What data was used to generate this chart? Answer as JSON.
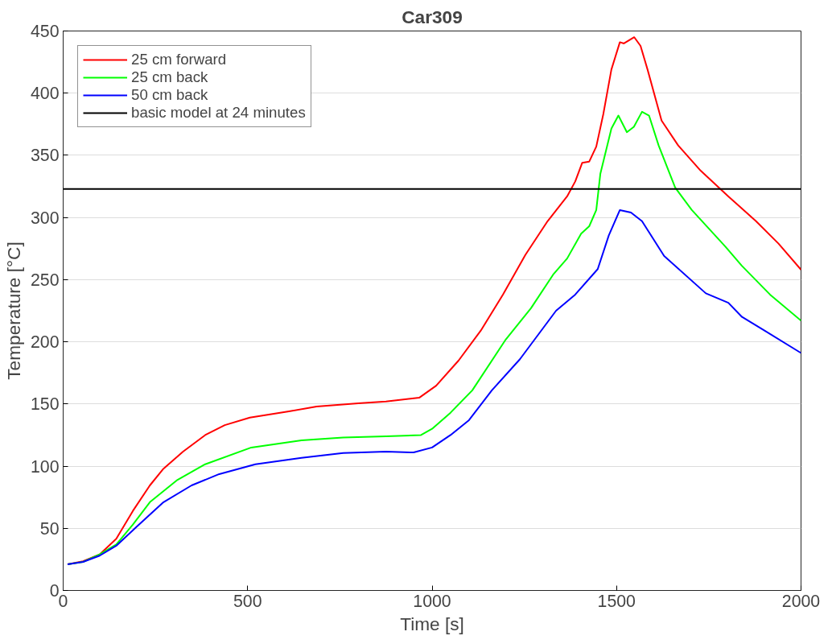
{
  "chart_data": {
    "type": "line",
    "title": "Car309",
    "xlabel": "Time [s]",
    "ylabel": "Temperature [°C]",
    "xlim": [
      0,
      2000
    ],
    "xticks": [
      0,
      500,
      1000,
      1500,
      2000
    ],
    "ylim": [
      0,
      450
    ],
    "yticks": [
      0,
      50,
      100,
      150,
      200,
      250,
      300,
      350,
      400,
      450
    ],
    "grid": "y",
    "legend": "top left",
    "line_style": "solid",
    "marker": "none",
    "series": [
      {
        "name": "25 cm forward",
        "color": "#ff0000",
        "x": [
          12,
          54,
          99,
          144,
          189,
          235,
          272,
          325,
          385,
          438,
          506,
          612,
          687,
          800,
          875,
          965,
          1011,
          1072,
          1132,
          1192,
          1253,
          1313,
          1366,
          1388,
          1407,
          1426,
          1445,
          1464,
          1486,
          1509,
          1520,
          1548,
          1565,
          1584,
          1622,
          1667,
          1728,
          1803,
          1878,
          1939,
          2000
        ],
        "values": [
          21,
          23.5,
          29,
          41.6,
          64,
          84.5,
          98,
          111.7,
          125,
          133,
          139,
          144,
          148,
          150.5,
          152,
          155,
          164.7,
          185,
          209,
          238,
          270,
          297,
          317,
          329,
          344,
          345,
          357,
          383,
          419,
          441,
          440,
          445,
          438,
          419,
          378,
          358,
          337.6,
          317,
          297,
          279,
          258
        ]
      },
      {
        "name": "25 cm back",
        "color": "#00ff00",
        "x": [
          12,
          54,
          99,
          144,
          189,
          235,
          310,
          385,
          510,
          646,
          759,
          875,
          970,
          1000,
          1050,
          1109,
          1200,
          1268,
          1328,
          1366,
          1404,
          1426,
          1445,
          1456,
          1486,
          1505,
          1528,
          1547,
          1569,
          1588,
          1614,
          1659,
          1704,
          1795,
          1840,
          1916,
          2000
        ],
        "values": [
          21,
          23,
          29,
          37,
          53,
          71,
          89,
          101.5,
          115,
          120.7,
          123,
          124,
          125,
          130,
          143,
          161,
          202,
          227,
          254,
          267,
          287,
          293,
          306,
          335,
          371.5,
          382,
          368.6,
          373,
          385,
          382,
          358,
          324,
          306,
          276.6,
          261,
          238,
          217
        ]
      },
      {
        "name": "50 cm back",
        "color": "#0000ff",
        "x": [
          12,
          54,
          99,
          144,
          197,
          272,
          348,
          423,
          521,
          646,
          759,
          875,
          950,
          1000,
          1050,
          1100,
          1162,
          1238,
          1336,
          1388,
          1449,
          1479,
          1509,
          1539,
          1569,
          1629,
          1742,
          1803,
          1840,
          1901,
          2000
        ],
        "values": [
          21,
          23,
          28,
          36,
          50.6,
          71,
          84.5,
          93.6,
          101.5,
          106.6,
          110.5,
          111.7,
          111,
          115,
          125,
          137,
          161,
          186,
          225,
          238,
          258.5,
          285.6,
          306,
          304,
          297,
          269,
          239,
          231.4,
          220,
          209,
          191
        ]
      }
    ],
    "ref_lines": [
      {
        "axis": "y",
        "value": 323,
        "label": "basic model at 24 minutes",
        "color": "#000000",
        "line_style": "solid"
      }
    ]
  }
}
